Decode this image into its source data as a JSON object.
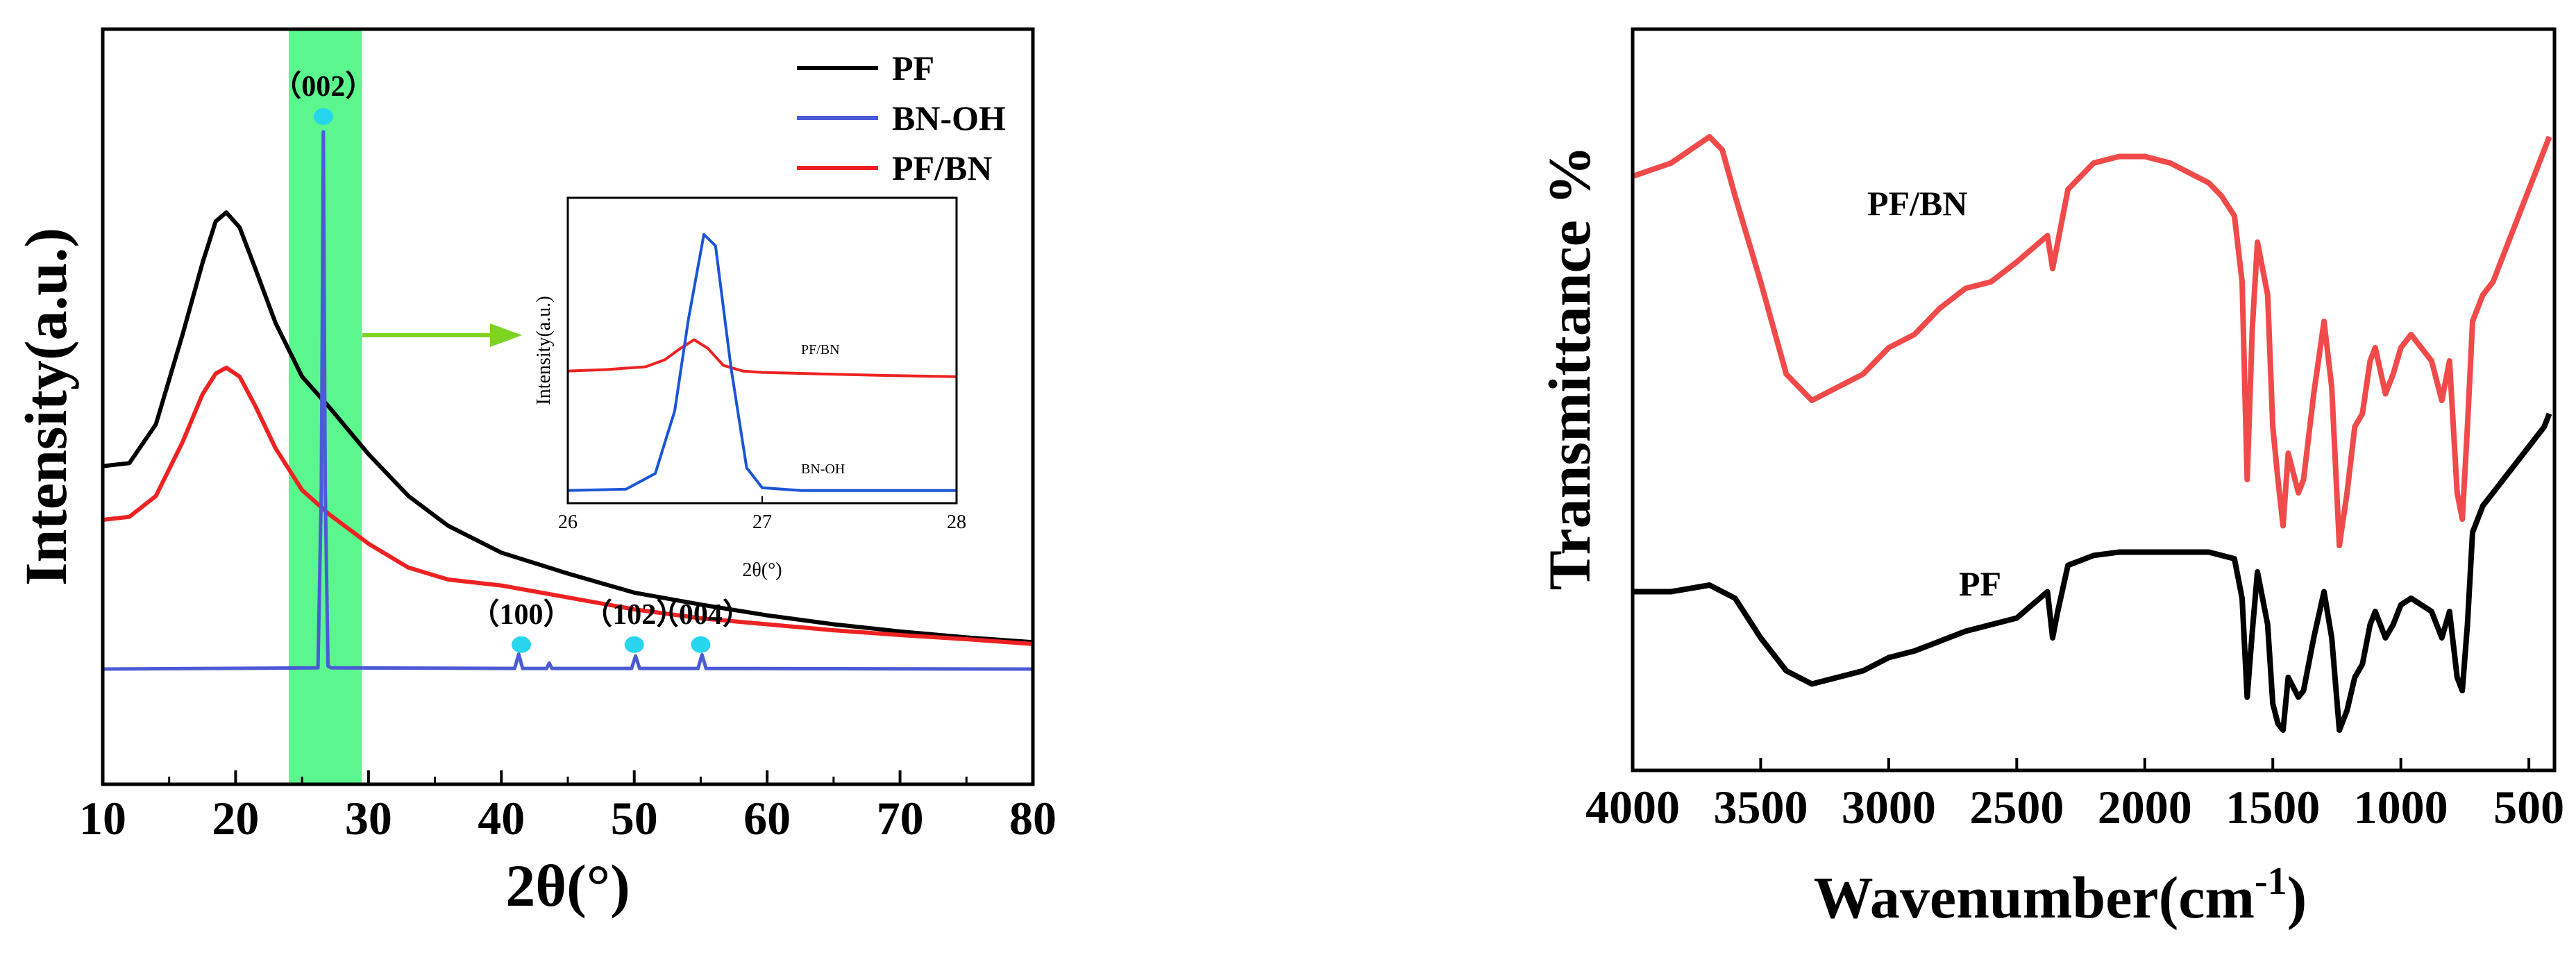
{
  "chart_data": [
    {
      "type": "line",
      "panel": "XRD",
      "xlabel": "2θ(°)",
      "ylabel": "Intensity(a.u.)",
      "xlim": [
        10,
        80
      ],
      "xticks": [
        10,
        20,
        30,
        40,
        50,
        60,
        70,
        80
      ],
      "ylim": [
        0,
        100
      ],
      "highlight_range": [
        24,
        29.5
      ],
      "highlight_color": "#3ef57a",
      "legend": [
        {
          "label": "PF",
          "color": "#000000"
        },
        {
          "label": "BN-OH",
          "color": "#4b5bd6"
        },
        {
          "label": "PF/BN",
          "color": "#ee2222"
        }
      ],
      "series": [
        {
          "name": "PF",
          "color": "#000000",
          "x": [
            10,
            12,
            14,
            16,
            17.5,
            18.5,
            19.3,
            20.3,
            21.5,
            23,
            25,
            27,
            30,
            33,
            36,
            40,
            45,
            50,
            55,
            60,
            65,
            70,
            75,
            80
          ],
          "y": [
            44,
            44.5,
            51,
            66,
            78,
            85,
            86.5,
            84,
            77,
            68,
            59,
            54,
            46,
            39,
            34,
            29.5,
            26,
            22.8,
            20.8,
            19,
            17.5,
            16.3,
            15.3,
            14.5
          ]
        },
        {
          "name": "PF/BN",
          "color": "#ee2222",
          "x": [
            10,
            12,
            14,
            16,
            17.5,
            18.5,
            19.3,
            20.3,
            21.5,
            23,
            25,
            27,
            30,
            33,
            36,
            40,
            45,
            50,
            55,
            60,
            65,
            70,
            75,
            80
          ],
          "y": [
            35,
            35.5,
            39,
            48,
            56,
            59.5,
            60.5,
            59,
            54,
            47,
            40,
            36,
            31,
            27,
            25,
            24,
            22,
            20,
            18.5,
            17.5,
            16.5,
            15.7,
            15,
            14.2
          ]
        },
        {
          "name": "BN-OH",
          "color": "#4b5bd6",
          "x": [
            10,
            26.2,
            26.45,
            26.6,
            26.75,
            26.95,
            27.2,
            41.0,
            41.3,
            41.6,
            43.4,
            43.6,
            43.8,
            49.8,
            50.1,
            50.4,
            54.8,
            55.1,
            55.4,
            80
          ],
          "y": [
            10,
            10.2,
            40,
            100,
            40,
            10.5,
            10.2,
            10.1,
            12.5,
            10.1,
            10.1,
            11.0,
            10.1,
            10.1,
            12.2,
            10.1,
            10.1,
            12.4,
            10.1,
            10
          ]
        }
      ],
      "peak_labels": [
        {
          "label": "（002）",
          "x": 26.6
        },
        {
          "label": "（100）",
          "x": 41.5
        },
        {
          "label": "（102）",
          "x": 50.0
        },
        {
          "label": "（004）",
          "x": 55.0
        }
      ],
      "marker_color": "#28d5ee",
      "arrow_color": "#7ed321",
      "inset": {
        "xlim": [
          26,
          28
        ],
        "xticks": [
          "26",
          "27",
          "28"
        ],
        "xlabel": "2θ(°)",
        "ylabel": "Intensity(a.u.)",
        "ylim": [
          0,
          100
        ],
        "annotations": [
          {
            "label": "PF/BN",
            "x": 27.2,
            "y": 50
          },
          {
            "label": "BN-OH",
            "x": 27.2,
            "y": 8
          }
        ],
        "series": [
          {
            "name": "PF/BN",
            "color": "#ee2222",
            "x": [
              26,
              26.2,
              26.4,
              26.5,
              26.58,
              26.65,
              26.72,
              26.8,
              26.9,
              27.0,
              27.3,
              27.6,
              28
            ],
            "y": [
              44,
              44.5,
              45.5,
              48,
              52,
              55,
              52,
              46,
              44,
              43.5,
              43,
              42.5,
              42
            ]
          },
          {
            "name": "BN-OH",
            "color": "#1b55d6",
            "x": [
              26,
              26.3,
              26.45,
              26.55,
              26.62,
              26.7,
              26.76,
              26.84,
              26.92,
              27.0,
              27.2,
              28
            ],
            "y": [
              2,
              2.5,
              8,
              30,
              62,
              92,
              88,
              45,
              10,
              3,
              2,
              2
            ]
          }
        ]
      }
    },
    {
      "type": "line",
      "panel": "FTIR",
      "xlabel": "Wavenumber(cm",
      "xlabel_sup": "-1",
      "xlabel_close": ")",
      "ylabel": "Transmittance %",
      "xlim": [
        4000,
        400
      ],
      "xticks": [
        4000,
        3500,
        3000,
        2500,
        2000,
        1500,
        1000,
        500
      ],
      "ylim": [
        0,
        100
      ],
      "series": [
        {
          "name": "PF/BN",
          "label": "PF/BN",
          "color": "#f04a4a",
          "x": [
            4000,
            3850,
            3700,
            3650,
            3600,
            3500,
            3400,
            3300,
            3200,
            3100,
            3000,
            2950,
            2900,
            2800,
            2700,
            2600,
            2500,
            2380,
            2360,
            2340,
            2300,
            2200,
            2100,
            2000,
            1900,
            1800,
            1750,
            1700,
            1650,
            1620,
            1600,
            1580,
            1560,
            1520,
            1500,
            1480,
            1460,
            1440,
            1400,
            1380,
            1340,
            1300,
            1270,
            1240,
            1210,
            1180,
            1150,
            1120,
            1100,
            1060,
            1030,
            1000,
            960,
            920,
            880,
            840,
            810,
            780,
            760,
            740,
            720,
            680,
            640,
            600,
            560,
            520,
            480,
            440,
            420
          ],
          "y": [
            88,
            90,
            94,
            92,
            85,
            72,
            58,
            54,
            56,
            58,
            62,
            63,
            64,
            68,
            71,
            72,
            75,
            79,
            74,
            78,
            86,
            90,
            91,
            91,
            90,
            88,
            87,
            85,
            82,
            72,
            42,
            65,
            78,
            70,
            50,
            42,
            35,
            46,
            40,
            42,
            55,
            66,
            56,
            32,
            40,
            50,
            52,
            60,
            62,
            55,
            58,
            62,
            64,
            62,
            60,
            54,
            60,
            40,
            36,
            50,
            66,
            70,
            72,
            76,
            80,
            84,
            88,
            92,
            94
          ]
        },
        {
          "name": "PF",
          "label": "PF",
          "color": "#000000",
          "x": [
            4000,
            3850,
            3700,
            3650,
            3600,
            3500,
            3400,
            3300,
            3200,
            3100,
            3000,
            2950,
            2900,
            2800,
            2700,
            2600,
            2500,
            2380,
            2360,
            2340,
            2300,
            2200,
            2100,
            2000,
            1900,
            1800,
            1750,
            1700,
            1650,
            1620,
            1600,
            1580,
            1560,
            1520,
            1500,
            1480,
            1460,
            1440,
            1400,
            1380,
            1340,
            1300,
            1270,
            1240,
            1210,
            1180,
            1150,
            1120,
            1100,
            1060,
            1030,
            1000,
            960,
            920,
            880,
            840,
            810,
            780,
            760,
            740,
            720,
            680,
            640,
            600,
            560,
            520,
            480,
            440,
            420
          ],
          "y": [
            25,
            25,
            26,
            25,
            24,
            18,
            13,
            11,
            12,
            13,
            15,
            15.5,
            16,
            17.5,
            19,
            20,
            21,
            25,
            18,
            22,
            29,
            30.5,
            31,
            31,
            31,
            31,
            31,
            30.5,
            30,
            24,
            9,
            19,
            28,
            20,
            8,
            5,
            4,
            12,
            9,
            10,
            18,
            25,
            18,
            4,
            7,
            12,
            14,
            20,
            22,
            18,
            20,
            23,
            24,
            23,
            22,
            18,
            22,
            12,
            10,
            20,
            34,
            38,
            40,
            42,
            44,
            46,
            48,
            50,
            52
          ]
        }
      ]
    }
  ]
}
